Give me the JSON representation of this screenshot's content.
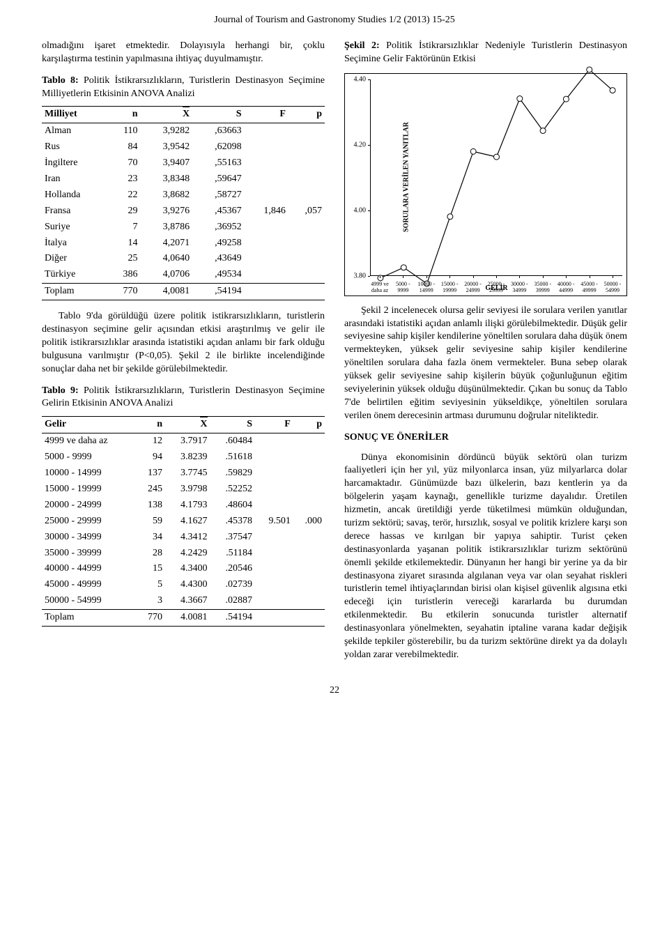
{
  "header": "Journal of Tourism and Gastronomy Studies 1/2 (2013) 15-25",
  "page_number": "22",
  "left": {
    "para1": "olmadığını işaret etmektedir. Dolayısıyla herhangi bir, çoklu karşılaştırma testinin yapılmasına ihtiyaç duyulmamıştır.",
    "table8_caption_bold": "Tablo 8:",
    "table8_caption_rest": " Politik İstikrarsızlıkların, Turistlerin Destinasyon Seçimine Milliyetlerin Etkisinin ANOVA Analizi",
    "table8": {
      "headers": [
        "Milliyet",
        "n",
        "X",
        "S",
        "F",
        "p"
      ],
      "rows": [
        [
          "Alman",
          "110",
          "3,9282",
          ",63663",
          "",
          ""
        ],
        [
          "Rus",
          "84",
          "3,9542",
          ",62098",
          "",
          ""
        ],
        [
          "İngiltere",
          "70",
          "3,9407",
          ",55163",
          "",
          ""
        ],
        [
          "Iran",
          "23",
          "3,8348",
          ",59647",
          "",
          ""
        ],
        [
          "Hollanda",
          "22",
          "3,8682",
          ",58727",
          "",
          ""
        ],
        [
          "Fransa",
          "29",
          "3,9276",
          ",45367",
          "1,846",
          ",057"
        ],
        [
          "Suriye",
          "7",
          "3,8786",
          ",36952",
          "",
          ""
        ],
        [
          "İtalya",
          "14",
          "4,2071",
          ",49258",
          "",
          ""
        ],
        [
          "Diğer",
          "25",
          "4,0640",
          ",43649",
          "",
          ""
        ],
        [
          "Türkiye",
          "386",
          "4,0706",
          ",49534",
          "",
          ""
        ],
        [
          "Toplam",
          "770",
          "4,0081",
          ",54194",
          "",
          ""
        ]
      ]
    },
    "para2": "Tablo 9'da görüldüğü üzere politik istikrarsızlıkların, turistlerin destinasyon seçimine gelir açısından etkisi araştırılmış ve gelir ile politik istikrarsızlıklar arasında istatistiki açıdan anlamı bir fark olduğu bulgusuna varılmıştır (P<0,05). Şekil 2 ile birlikte incelendiğinde sonuçlar daha net bir şekilde görülebilmektedir.",
    "table9_caption_bold": "Tablo 9:",
    "table9_caption_rest": " Politik İstikrarsızlıkların, Turistlerin Destinasyon Seçimine Gelirin Etkisinin ANOVA Analizi",
    "table9": {
      "headers": [
        "Gelir",
        "n",
        "X",
        "S",
        "F",
        "p"
      ],
      "rows": [
        [
          "4999 ve daha az",
          "12",
          "3.7917",
          ".60484",
          "",
          ""
        ],
        [
          "5000 - 9999",
          "94",
          "3.8239",
          ".51618",
          "",
          ""
        ],
        [
          "10000 - 14999",
          "137",
          "3.7745",
          ".59829",
          "",
          ""
        ],
        [
          "15000 - 19999",
          "245",
          "3.9798",
          ".52252",
          "",
          ""
        ],
        [
          "20000 - 24999",
          "138",
          "4.1793",
          ".48604",
          "",
          ""
        ],
        [
          "25000 - 29999",
          "59",
          "4.1627",
          ".45378",
          "9.501",
          ".000"
        ],
        [
          "30000 - 34999",
          "34",
          "4.3412",
          ".37547",
          "",
          ""
        ],
        [
          "35000 - 39999",
          "28",
          "4.2429",
          ".51184",
          "",
          ""
        ],
        [
          "40000 - 44999",
          "15",
          "4.3400",
          ".20546",
          "",
          ""
        ],
        [
          "45000 - 49999",
          "5",
          "4.4300",
          ".02739",
          "",
          ""
        ],
        [
          "50000 - 54999",
          "3",
          "4.3667",
          ".02887",
          "",
          ""
        ],
        [
          "Toplam",
          "770",
          "4.0081",
          ".54194",
          "",
          ""
        ]
      ]
    }
  },
  "right": {
    "fig_caption_bold": "Şekil 2:",
    "fig_caption_rest": " Politik İstikrarsızlıklar Nedeniyle Turistlerin Destinasyon Seçimine Gelir Faktörünün Etkisi",
    "chart": {
      "type": "line",
      "ylim": [
        3.8,
        4.4
      ],
      "yticks": [
        3.8,
        4.0,
        4.2,
        4.4
      ],
      "ylabel": "SORULARA VERİLEN YANITLAR",
      "xlabel": "GELİR",
      "categories": [
        "4999 ve daha az",
        "5000 - 9999",
        "10000 - 14999",
        "15000 - 19999",
        "20000 - 24999",
        "25000 - 29999",
        "30000 - 34999",
        "35000 - 39999",
        "40000 - 44999",
        "45000 - 49999",
        "50000 - 54999"
      ],
      "category_line1": [
        "4999 ve",
        "5000 -",
        "10000 -",
        "15000 -",
        "20000 -",
        "25000 -",
        "30000 -",
        "35000 -",
        "40000 -",
        "45000 -",
        "50000 -"
      ],
      "category_line2": [
        "daha az",
        "9999",
        "14999",
        "19999",
        "24999",
        "29999",
        "34999",
        "39999",
        "44999",
        "49999",
        "54999"
      ],
      "values": [
        3.7917,
        3.8239,
        3.7745,
        3.9798,
        4.1793,
        4.1627,
        4.3412,
        4.2429,
        4.34,
        4.43,
        4.3667
      ],
      "line_color": "#000000",
      "marker_stroke": "#000000",
      "marker_fill": "#ffffff",
      "marker_size": 4,
      "background_color": "#ffffff"
    },
    "para1": "Şekil 2 incelenecek olursa gelir seviyesi ile sorulara verilen yanıtlar arasındaki istatistiki açıdan anlamlı ilişki görülebilmektedir. Düşük gelir seviyesine sahip kişiler kendilerine yöneltilen sorulara daha düşük önem vermekteyken, yüksek gelir seviyesine sahip kişiler kendilerine yöneltilen sorulara daha fazla önem vermekteler. Buna sebep olarak yüksek gelir seviyesine sahip kişilerin büyük çoğunluğunun eğitim seviyelerinin yüksek olduğu düşünülmektedir. Çıkan bu sonuç da Tablo 7'de belirtilen eğitim seviyesinin yükseldikçe, yöneltilen sorulara verilen önem derecesinin artması durumunu doğrular niteliktedir.",
    "section_heading": "SONUÇ VE ÖNERİLER",
    "para2": "Dünya ekonomisinin dördüncü büyük sektörü olan turizm faaliyetleri için her yıl, yüz milyonlarca insan, yüz milyarlarca dolar harcamaktadır. Günümüzde bazı ülkelerin, bazı kentlerin ya da bölgelerin yaşam kaynağı, genellikle turizme dayalıdır. Üretilen hizmetin, ancak üretildiği yerde tüketilmesi mümkün olduğundan, turizm sektörü; savaş, terör, hırsızlık, sosyal ve politik krizlere karşı son derece hassas ve kırılgan bir yapıya sahiptir. Turist çeken destinasyonlarda yaşanan politik istikrarsızlıklar turizm sektörünü önemli şekilde etkilemektedir. Dünyanın her hangi bir yerine ya da bir destinasyona ziyaret sırasında algılanan veya var olan seyahat riskleri turistlerin temel ihtiyaçlarından birisi olan kişisel güvenlik algısına etki edeceği için turistlerin vereceği kararlarda bu durumdan etkilenmektedir. Bu etkilerin sonucunda turistler alternatif destinasyonlara yönelmekten, seyahatin iptaline varana kadar değişik şekilde tepkiler gösterebilir, bu da turizm sektörüne direkt ya da dolaylı yoldan zarar verebilmektedir."
  }
}
